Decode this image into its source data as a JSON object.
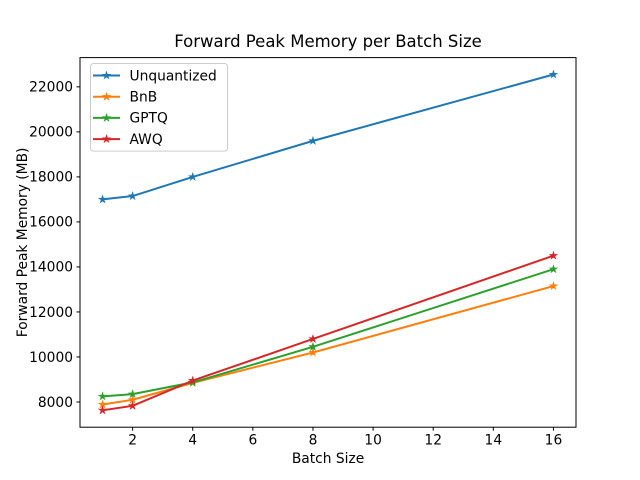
{
  "figure": {
    "background": "#ffffff"
  },
  "chart_data": {
    "type": "line",
    "title": "Forward Peak Memory per Batch Size",
    "xlabel": "Batch Size",
    "ylabel": "Forward Peak Memory (MB)",
    "x": [
      1,
      2,
      4,
      8,
      16
    ],
    "series": [
      {
        "name": "Unquantized",
        "color": "#1f77b4",
        "marker": "star",
        "values": [
          17000,
          17150,
          18000,
          19600,
          22550
        ]
      },
      {
        "name": "BnB",
        "color": "#ff7f0e",
        "marker": "star",
        "values": [
          7890,
          8100,
          8850,
          10200,
          13150
        ]
      },
      {
        "name": "GPTQ",
        "color": "#2ca02c",
        "marker": "star",
        "values": [
          8250,
          8350,
          8870,
          10450,
          13900
        ]
      },
      {
        "name": "AWQ",
        "color": "#d62728",
        "marker": "star",
        "values": [
          7630,
          7830,
          8950,
          10800,
          14500
        ]
      }
    ],
    "xticks": [
      2,
      4,
      6,
      8,
      10,
      12,
      14,
      16
    ],
    "yticks": [
      8000,
      10000,
      12000,
      14000,
      16000,
      18000,
      20000,
      22000
    ],
    "xlim": [
      0.25,
      16.75
    ],
    "ylim": [
      6880,
      23300
    ],
    "grid": false,
    "legend_position": "upper left",
    "frame_color": "#000000",
    "legend_edge_color": "#cccccc"
  }
}
